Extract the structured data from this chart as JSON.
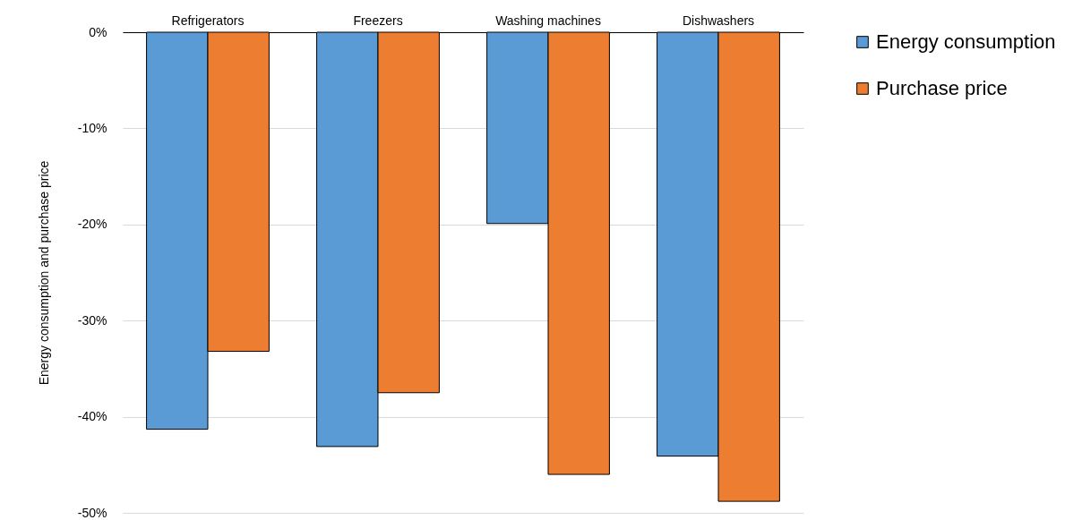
{
  "chart_data": {
    "type": "bar",
    "ylabel": "Energy consumption and purchase price",
    "categories": [
      "Refrigerators",
      "Freezers",
      "Washing machines",
      "Dishwashers"
    ],
    "series": [
      {
        "name": "Energy consumption",
        "color": "#5b9bd5",
        "values": [
          -41.3,
          -43.1,
          -19.9,
          -44.1
        ]
      },
      {
        "name": "Purchase price",
        "color": "#ed7d31",
        "values": [
          -33.2,
          -37.5,
          -46.0,
          -48.8
        ]
      }
    ],
    "ylim": [
      -50,
      0
    ],
    "yticks": [
      {
        "value": 0,
        "label": "0%"
      },
      {
        "value": -10,
        "label": "-10%"
      },
      {
        "value": -20,
        "label": "-20%"
      },
      {
        "value": -30,
        "label": "-30%"
      },
      {
        "value": -40,
        "label": "-40%"
      },
      {
        "value": -50,
        "label": "-50%"
      }
    ],
    "grid": "y",
    "legend": "right"
  }
}
